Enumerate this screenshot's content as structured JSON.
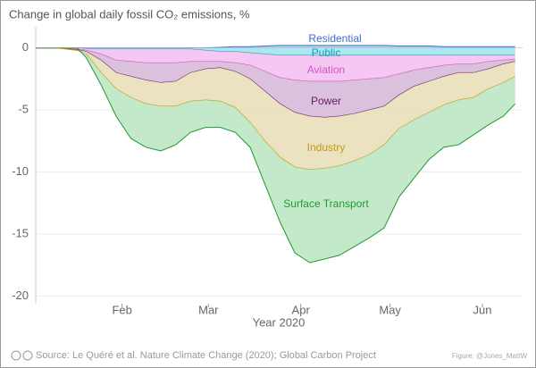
{
  "chart_data": {
    "type": "stacked-area",
    "title": "Change in global daily fossil CO₂ emissions, %",
    "xlabel": "Year 2020",
    "source": "Source: Le Quéré et al. Nature Climate Change (2020); Global Carbon Project",
    "credit": "Figure: @Jones_MattW",
    "x": [
      3,
      10,
      17,
      20,
      25,
      30,
      35,
      40,
      45,
      50,
      55,
      60,
      65,
      70,
      75,
      80,
      85,
      90,
      95,
      100,
      105,
      110,
      115,
      120,
      125,
      130,
      135,
      140,
      145,
      150,
      155,
      160,
      164
    ],
    "xlim": [
      3,
      166.5
    ],
    "xticks": [
      {
        "value": 32,
        "label": "Feb"
      },
      {
        "value": 61,
        "label": "Mar"
      },
      {
        "value": 92,
        "label": "Apr"
      },
      {
        "value": 122,
        "label": "May"
      },
      {
        "value": 153,
        "label": "Jun"
      }
    ],
    "ylim": [
      -20.6,
      1.7
    ],
    "yticks": [
      0,
      -5,
      -10,
      -15,
      -20
    ],
    "grid": true,
    "series": [
      {
        "name": "Residential",
        "color": "#3b6fd0",
        "fill": "#a9c6f0",
        "values": [
          0,
          0,
          0,
          0,
          0,
          0,
          0,
          0,
          0,
          0,
          0,
          0,
          0.05,
          0.1,
          0.1,
          0.15,
          0.2,
          0.2,
          0.2,
          0.2,
          0.2,
          0.2,
          0.2,
          0.2,
          0.15,
          0.15,
          0.15,
          0.1,
          0.1,
          0.1,
          0.1,
          0.1,
          0.1
        ]
      },
      {
        "name": "Public",
        "color": "#1aa0b8",
        "fill": "#9ee3ec",
        "values": [
          0,
          0,
          0,
          -0.05,
          -0.1,
          -0.1,
          -0.1,
          -0.1,
          -0.1,
          -0.1,
          -0.1,
          -0.2,
          -0.3,
          -0.3,
          -0.4,
          -0.5,
          -0.6,
          -0.6,
          -0.6,
          -0.6,
          -0.6,
          -0.6,
          -0.6,
          -0.6,
          -0.6,
          -0.6,
          -0.6,
          -0.6,
          -0.6,
          -0.6,
          -0.6,
          -0.6,
          -0.6
        ]
      },
      {
        "name": "Aviation",
        "color": "#d057c8",
        "fill": "#f5bdf0",
        "values": [
          0,
          0,
          -0.1,
          -0.15,
          -0.4,
          -0.9,
          -1.0,
          -1.1,
          -1.1,
          -1.1,
          -1.0,
          -0.9,
          -0.8,
          -0.9,
          -1.0,
          -1.4,
          -1.8,
          -2.0,
          -2.1,
          -2.1,
          -2.1,
          -2.0,
          -1.9,
          -1.8,
          -1.5,
          -1.2,
          -1.0,
          -0.8,
          -0.7,
          -0.7,
          -0.5,
          -0.4,
          -0.3
        ]
      },
      {
        "name": "Power",
        "color": "#6a1a6a",
        "fill": "#d6b6d8",
        "values": [
          0,
          0,
          -0.05,
          -0.1,
          -0.5,
          -1,
          -1.2,
          -1.4,
          -1.6,
          -1.5,
          -0.9,
          -0.6,
          -0.5,
          -0.7,
          -1.1,
          -1.6,
          -2.1,
          -2.6,
          -2.8,
          -2.9,
          -2.8,
          -2.7,
          -2.5,
          -2.3,
          -1.7,
          -1.3,
          -1.1,
          -0.9,
          -0.7,
          -0.7,
          -0.6,
          -0.3,
          -0.2
        ]
      },
      {
        "name": "Industry",
        "color": "#c89a10",
        "fill": "#e8ddb6",
        "values": [
          0,
          0,
          -0.05,
          -0.2,
          -1,
          -1.3,
          -1.7,
          -1.9,
          -1.9,
          -2,
          -2.3,
          -2.5,
          -2.7,
          -2.9,
          -3.5,
          -4,
          -4.3,
          -4.4,
          -4.3,
          -4.1,
          -4,
          -3.8,
          -3.6,
          -3.1,
          -2.7,
          -2.7,
          -2.5,
          -2.3,
          -2.2,
          -2,
          -1.6,
          -1.5,
          -1.2
        ]
      },
      {
        "name": "Surface Transport",
        "color": "#1f9a2f",
        "fill": "#b8e5c1",
        "values": [
          0,
          0,
          0,
          -0.3,
          -1,
          -2.2,
          -3.3,
          -3.5,
          -3.6,
          -3.1,
          -2.5,
          -2.2,
          -2.1,
          -2,
          -2,
          -3.5,
          -5.2,
          -6.9,
          -7.5,
          -7.3,
          -7.2,
          -6.9,
          -6.7,
          -6.7,
          -5.5,
          -4.7,
          -3.8,
          -3.4,
          -3.6,
          -3,
          -2.9,
          -2.7,
          -2.2
        ]
      }
    ]
  }
}
